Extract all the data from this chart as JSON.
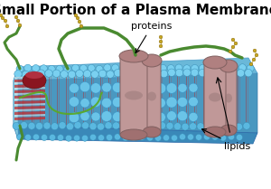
{
  "title": "Small Portion of a Plasma Membrane",
  "title_fontsize": 11,
  "title_fontweight": "bold",
  "background_color": "#ffffff",
  "label_proteins": "proteins",
  "label_lipids": "lipids",
  "label_fontsize": 8,
  "membrane_blue": "#5aabcc",
  "membrane_dark_blue": "#3a7aaa",
  "membrane_fill": "#4a98c0",
  "protein_color": "#b08090",
  "protein_edge": "#806060",
  "lipid_tail_color": "#cc3333",
  "green_color": "#4a8a30",
  "gold_color": "#c8a820",
  "head_color_bright": "#7ad0f0",
  "head_color_mid": "#5ab8e0",
  "head_edge": "#3a90b8",
  "red_interior": "#8a1a1a",
  "pink_interior": "#c06070",
  "fig_width": 3.0,
  "fig_height": 2.09,
  "dpi": 100
}
